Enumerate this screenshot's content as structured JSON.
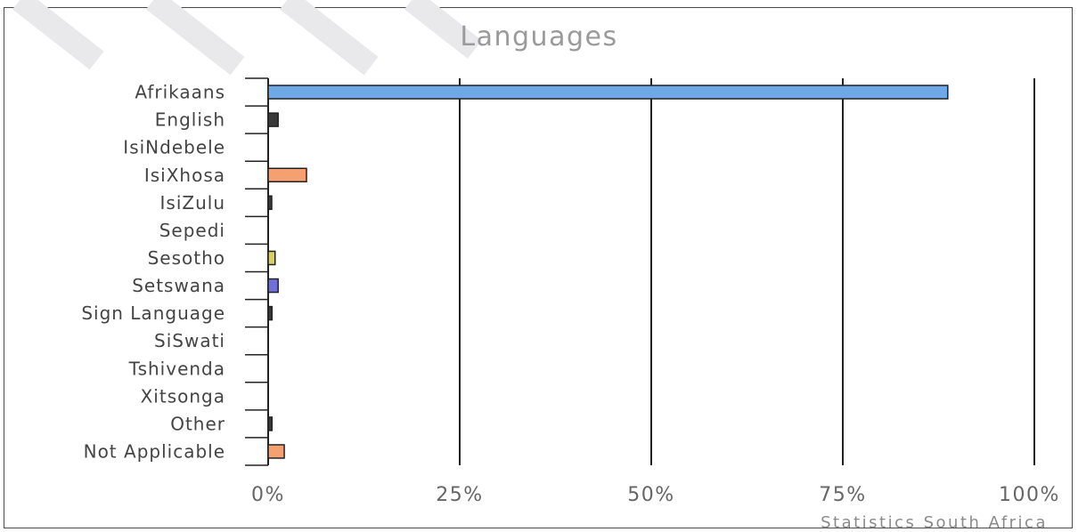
{
  "chart_data": {
    "type": "bar",
    "orientation": "horizontal",
    "title": "Languages",
    "categories": [
      "Afrikaans",
      "English",
      "IsiNdebele",
      "IsiXhosa",
      "IsiZulu",
      "Sepedi",
      "Sesotho",
      "Setswana",
      "Sign Language",
      "SiSwati",
      "Tshivenda",
      "Xitsonga",
      "Other",
      "Not Applicable"
    ],
    "values": [
      88.7,
      1.3,
      0,
      5.0,
      0.4,
      0,
      0.9,
      1.3,
      0.5,
      0,
      0,
      0,
      0.5,
      2.1
    ],
    "bar_colors": [
      "#6fa8e6",
      "#3a3a3a",
      "#3a3a3a",
      "#f4a070",
      "#3a3a3a",
      "#3a3a3a",
      "#d8d060",
      "#7070d8",
      "#3a3a3a",
      "#3a3a3a",
      "#3a3a3a",
      "#3a3a3a",
      "#3a3a3a",
      "#f4a070"
    ],
    "xlim": [
      0,
      100
    ],
    "xticks": [
      0,
      25,
      50,
      75,
      100
    ],
    "xtick_labels": [
      "0%",
      "25%",
      "50%",
      "75%",
      "100%"
    ],
    "grid": true,
    "source": "Statistics South Africa"
  }
}
